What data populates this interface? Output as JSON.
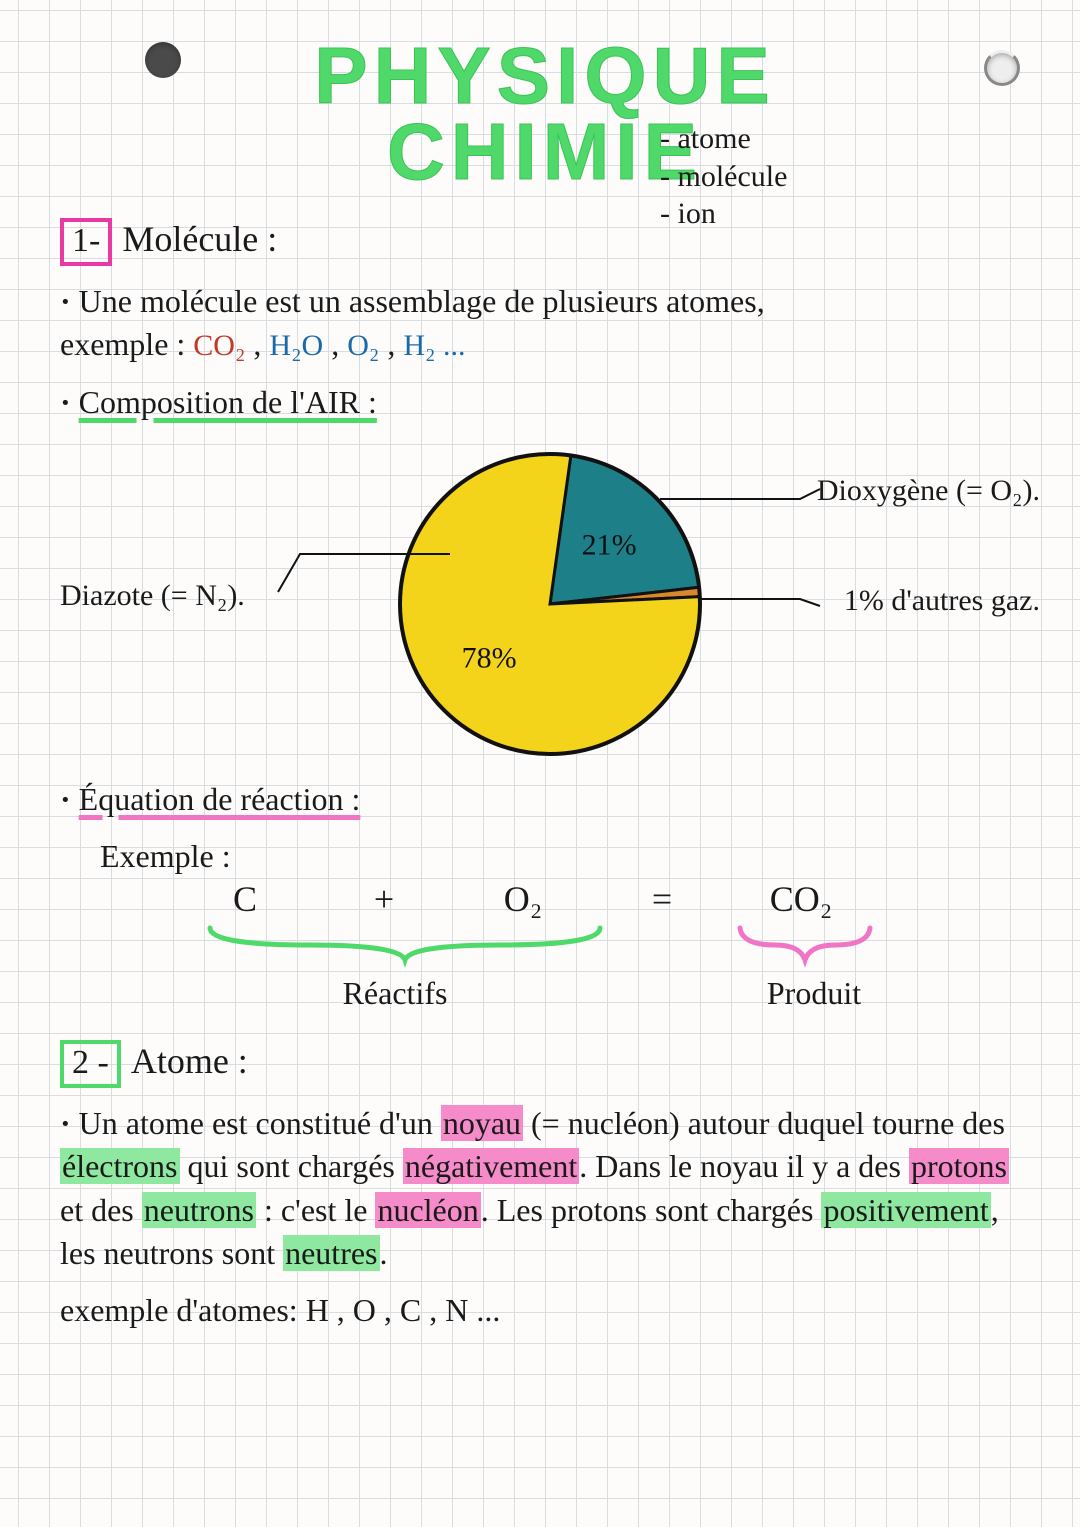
{
  "title": {
    "line1": "PHYSIQUE",
    "line2": "CHIMIE"
  },
  "subtopics": [
    "- atome",
    "- molécule",
    "- ion"
  ],
  "section1": {
    "num": "1-",
    "title": "Molécule :",
    "def_prefix": "Une molécule est un assemblage de plusieurs atomes,",
    "def_example_label": "exemple :",
    "formulas": [
      "CO₂",
      "H₂O",
      "O₂",
      "H₂ ..."
    ],
    "formula_colors": [
      "#c0392b",
      "#1a6aa8",
      "#1a6aa8",
      "#1a6aa8"
    ],
    "comp_title": "Composition de l'AIR :",
    "pie": {
      "type": "pie",
      "radius": 150,
      "stroke": "#111111",
      "background": "transparent",
      "slices": [
        {
          "name": "Dioxygène (= O₂).",
          "value": 21,
          "color": "#1d7f88",
          "label_inside": "21%"
        },
        {
          "name": "1% d'autres gaz.",
          "value": 1,
          "color": "#d9872c",
          "label_inside": ""
        },
        {
          "name": "Diazote (= N₂).",
          "value": 78,
          "color": "#f4d41b",
          "label_inside": "78%"
        }
      ],
      "start_angle_deg": -82
    },
    "eq_title": "Équation de réaction :",
    "eq_example_label": "Exemple :",
    "equation": {
      "reactants": [
        "C",
        "O₂"
      ],
      "product": "CO₂",
      "reactants_label": "Réactifs",
      "product_label": "Produit",
      "reactant_brace_color": "#4fd96a",
      "product_brace_color": "#f075c4"
    }
  },
  "section2": {
    "num": "2 -",
    "title": "Atome :",
    "paragraph_parts": [
      {
        "t": "Un atome est constitué d'un "
      },
      {
        "t": "noyau",
        "hl": "pink"
      },
      {
        "t": " (= nucléon) autour duquel tourne des "
      },
      {
        "t": "électrons",
        "hl": "green"
      },
      {
        "t": " qui sont chargés "
      },
      {
        "t": "négativement",
        "hl": "pink"
      },
      {
        "t": ". Dans le noyau il y a des "
      },
      {
        "t": "protons",
        "hl": "pink"
      },
      {
        "t": " et des "
      },
      {
        "t": "neutrons",
        "hl": "green"
      },
      {
        "t": " : c'est le "
      },
      {
        "t": "nucléon",
        "hl": "pink"
      },
      {
        "t": ". Les protons sont chargés "
      },
      {
        "t": "positivement",
        "hl": "green"
      },
      {
        "t": ", les neutrons sont "
      },
      {
        "t": "neutres",
        "hl": "green"
      },
      {
        "t": "."
      }
    ],
    "example_label": "exemple d'atomes:",
    "example_atoms": "H , O , C , N ..."
  },
  "colors": {
    "title_green": "#4fd96a",
    "pink": "#e93aa3",
    "hl_pink": "#f58bc8",
    "hl_green": "#8fe8a0"
  },
  "fonts": {
    "body_pt": 32,
    "title_pt": 80
  }
}
